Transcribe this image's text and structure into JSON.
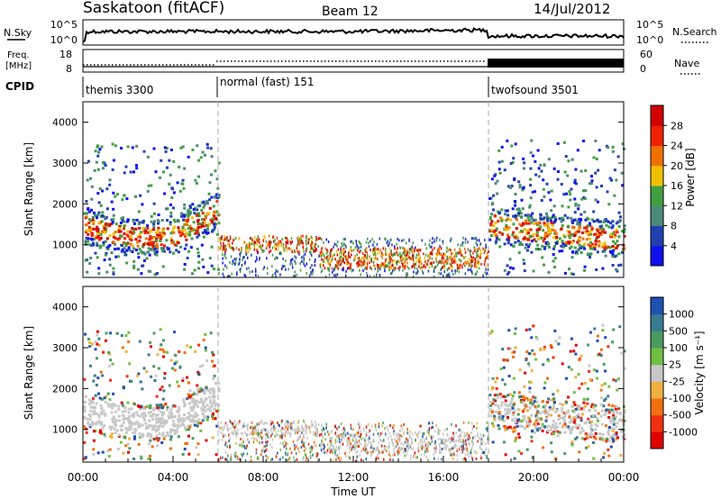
{
  "header": {
    "station": "Saskatoon (fitACF)",
    "beam": "Beam 12",
    "date": "14/Jul/2012"
  },
  "nsky_panel": {
    "left_label": "N.Sky",
    "right_label": "N.Search",
    "left_ticks": [
      "10^5",
      "10^0"
    ],
    "right_ticks": [
      "10^5",
      "10^0"
    ]
  },
  "freq_panel": {
    "left_label_1": "Freq.",
    "left_label_2": "[MHz]",
    "right_label": "Nave",
    "left_ticks": [
      "18",
      "8"
    ],
    "right_ticks": [
      "60",
      "0"
    ]
  },
  "cpid_panel": {
    "label": "CPID",
    "segments": [
      {
        "name": "themis 3300",
        "start_hour": 0
      },
      {
        "name": "normal (fast) 151",
        "start_hour": 6
      },
      {
        "name": "twofsound 3501",
        "start_hour": 18
      }
    ]
  },
  "chart_data": [
    {
      "type": "heatmap",
      "title": "Power",
      "ylabel": "Slant Range [km]",
      "ylim": [
        200,
        4500
      ],
      "y_ticks": [
        "1000",
        "2000",
        "3000",
        "4000"
      ],
      "xlim_hours": [
        0,
        24
      ],
      "colorbar_label": "Power [dB]",
      "colorbar_ticks": [
        "4",
        "8",
        "12",
        "16",
        "20",
        "24",
        "28"
      ],
      "colorbar_colors": [
        "#1010ee",
        "#2040b0",
        "#4a8a78",
        "#40a040",
        "#f0c000",
        "#f07000",
        "#f02000",
        "#d00000"
      ]
    },
    {
      "type": "heatmap",
      "title": "Velocity",
      "ylabel": "Slant Range [km]",
      "ylim": [
        200,
        4500
      ],
      "y_ticks": [
        "1000",
        "2000",
        "3000",
        "4000"
      ],
      "xlim_hours": [
        0,
        24
      ],
      "colorbar_label": "Velocity [m s⁻¹]",
      "colorbar_ticks": [
        "1000",
        "500",
        "100",
        "25",
        "-25",
        "-100",
        "-500",
        "-1000"
      ],
      "colorbar_colors": [
        "#2050b0",
        "#3a7a90",
        "#4a9a60",
        "#70c040",
        "#c8c8c8",
        "#f0b040",
        "#f07010",
        "#f03010",
        "#e00000"
      ]
    }
  ],
  "x_axis": {
    "label": "Time UT",
    "ticks": [
      "00:00",
      "04:00",
      "08:00",
      "12:00",
      "16:00",
      "20:00",
      "00:00"
    ]
  }
}
